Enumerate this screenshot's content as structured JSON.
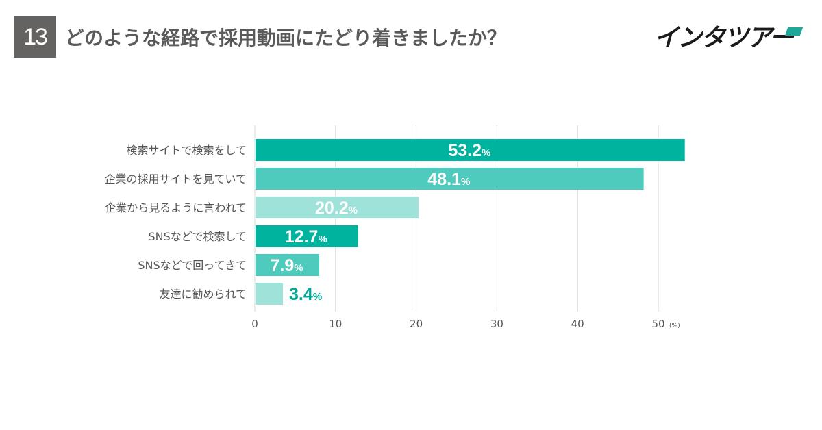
{
  "header": {
    "number": "13",
    "title": "どのような経路で採用動画にたどり着きましたか？",
    "logo": "インタツアー"
  },
  "chart_data": {
    "type": "bar",
    "orientation": "horizontal",
    "title": "どのような経路で採用動画にたどり着きましたか？",
    "categories": [
      "検索サイトで検索をして",
      "企業の採用サイトを見ていて",
      "企業から見るように言われて",
      "SNSなどで検索して",
      "SNSなどで回ってきて",
      "友達に勧められて"
    ],
    "values": [
      53.2,
      48.1,
      20.2,
      12.7,
      7.9,
      3.4
    ],
    "value_labels": [
      "53.2",
      "48.1",
      "20.2",
      "12.7",
      "7.9",
      "3.4"
    ],
    "value_suffix": "%",
    "colors": [
      "#00b39f",
      "#4ecbbd",
      "#9ee2da",
      "#00b39f",
      "#4ecbbd",
      "#9ee2da"
    ],
    "xlim": [
      0,
      53.5
    ],
    "xticks": [
      0,
      10,
      20,
      30,
      40,
      50
    ],
    "xtick_labels": [
      "0",
      "10",
      "20",
      "30",
      "40",
      "50"
    ],
    "x_unit": "(%)",
    "grid": true
  }
}
